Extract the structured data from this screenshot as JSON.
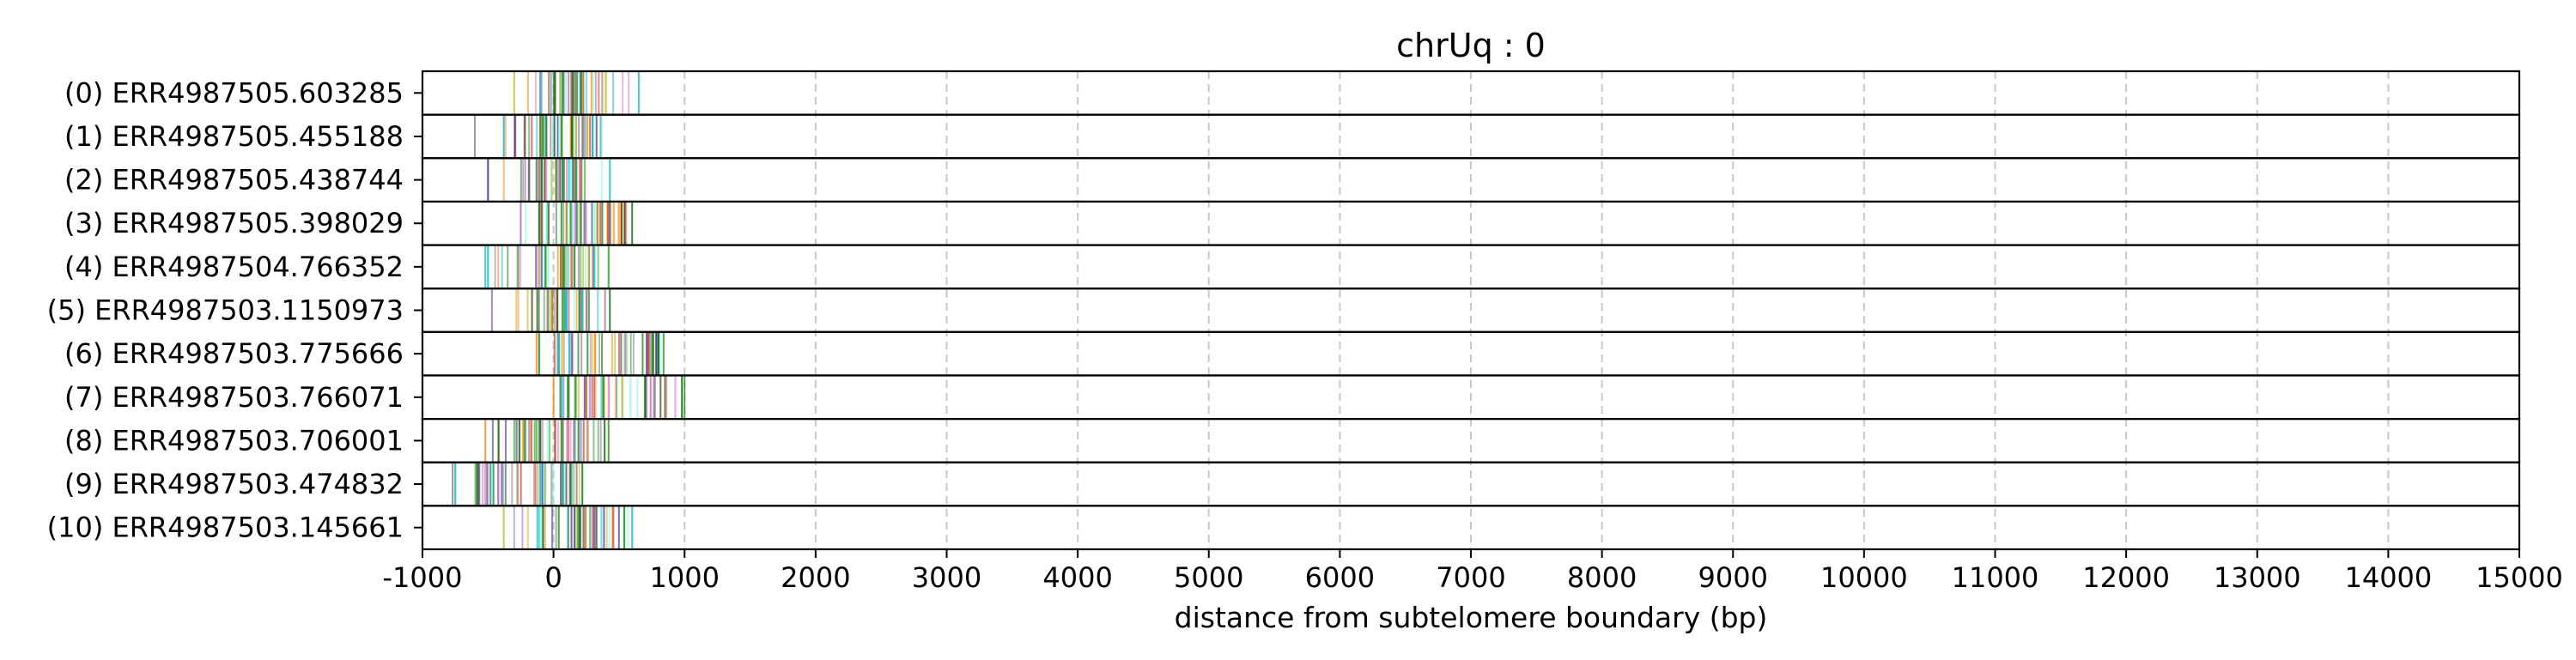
{
  "chart_data": {
    "type": "heatmap",
    "title": "chrUq : 0",
    "xlabel": "distance from subtelomere boundary (bp)",
    "ylabel": "",
    "xlim": [
      -1000,
      15000
    ],
    "x_ticks": [
      -1000,
      0,
      1000,
      2000,
      3000,
      4000,
      5000,
      6000,
      7000,
      8000,
      9000,
      10000,
      11000,
      12000,
      13000,
      14000,
      15000
    ],
    "x_tick_labels": [
      "-1000",
      "0",
      "1000",
      "2000",
      "3000",
      "4000",
      "5000",
      "6000",
      "7000",
      "8000",
      "9000",
      "10000",
      "11000",
      "12000",
      "13000",
      "14000",
      "15000"
    ],
    "grid": "vertical dashed",
    "colors": {
      "frame": "#000000",
      "grid": "#c8c8c8",
      "marks": [
        "#2ca02c",
        "#1f6f1f",
        "#17becf",
        "#7f7f7f",
        "#bcbd22",
        "#ff7f0e",
        "#9467bd",
        "#1f1f8f",
        "#d62728",
        "#8c564b",
        "#e377c2",
        "#7fffd4"
      ]
    },
    "reads": [
      {
        "label": "(0) ERR4987505.603285",
        "extent": [
          -300,
          650
        ],
        "dense": [
          -100,
          300
        ],
        "dark": [
          -100,
          10,
          70,
          150,
          210
        ]
      },
      {
        "label": "(1) ERR4987505.455188",
        "extent": [
          -600,
          360
        ],
        "dense": [
          -300,
          330
        ],
        "dark": [
          -380,
          -80,
          60,
          140,
          300
        ]
      },
      {
        "label": "(2) ERR4987505.438744",
        "extent": [
          -500,
          430
        ],
        "dense": [
          -200,
          250
        ],
        "dark": [
          -90,
          20,
          80,
          170
        ]
      },
      {
        "label": "(3) ERR4987505.398029",
        "extent": [
          -250,
          600
        ],
        "dense": [
          -120,
          560
        ],
        "dark": [
          -110,
          60,
          130,
          210,
          520
        ]
      },
      {
        "label": "(4) ERR4987504.766352",
        "extent": [
          -520,
          420
        ],
        "dense": [
          -150,
          330
        ],
        "dark": [
          -500,
          -60,
          80,
          160,
          310
        ]
      },
      {
        "label": "(5) ERR4987503.1150973",
        "extent": [
          -470,
          430
        ],
        "dense": [
          -200,
          300
        ],
        "dark": [
          -120,
          30,
          90,
          200
        ]
      },
      {
        "label": "(6) ERR4987503.775666",
        "extent": [
          -130,
          840
        ],
        "dense": [
          -120,
          820
        ],
        "dark": [
          -110,
          40,
          120,
          260,
          680,
          760,
          800
        ]
      },
      {
        "label": "(7) ERR4987503.766071",
        "extent": [
          0,
          1000
        ],
        "dense": [
          40,
          960
        ],
        "dark": [
          60,
          110,
          170,
          380,
          700,
          980
        ]
      },
      {
        "label": "(8) ERR4987503.706001",
        "extent": [
          -520,
          420
        ],
        "dense": [
          -300,
          330
        ],
        "dark": [
          -420,
          -100,
          60,
          190,
          390
        ]
      },
      {
        "label": "(9) ERR4987503.474832",
        "extent": [
          -770,
          220
        ],
        "dense": [
          -600,
          180
        ],
        "dark": [
          -750,
          -480,
          -100,
          70,
          130
        ]
      },
      {
        "label": "(10) ERR4987503.145661",
        "extent": [
          -380,
          600
        ],
        "dense": [
          -150,
          560
        ],
        "dark": [
          -80,
          40,
          110,
          200,
          540
        ]
      }
    ]
  }
}
